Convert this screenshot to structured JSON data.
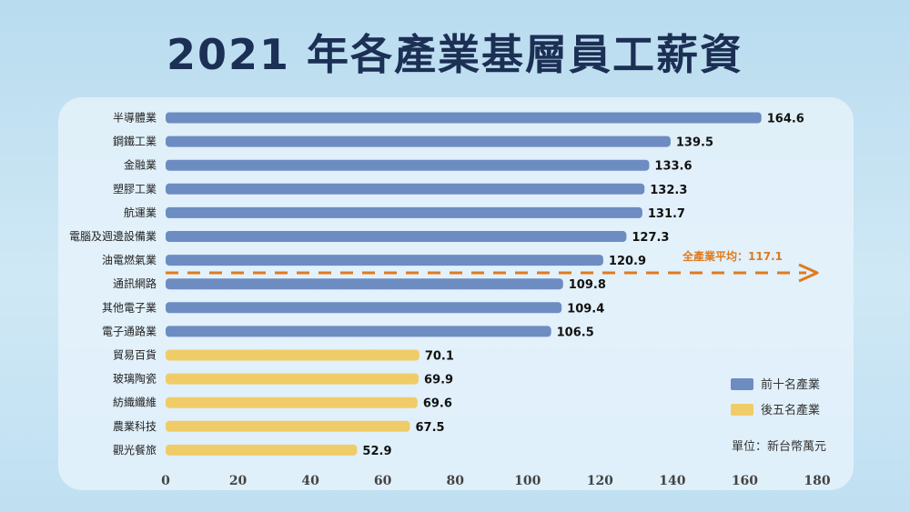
{
  "title": "2021 年各產業基層員工薪資",
  "chart_data": {
    "type": "bar",
    "orientation": "horizontal",
    "categories": [
      "半導體業",
      "鋼鐵工業",
      "金融業",
      "塑膠工業",
      "航運業",
      "電腦及週邊設備業",
      "油電燃氣業",
      "通訊網路",
      "其他電子業",
      "電子通路業",
      "貿易百貨",
      "玻璃陶瓷",
      "紡織纖維",
      "農業科技",
      "觀光餐旅"
    ],
    "values": [
      164.6,
      139.5,
      133.6,
      132.3,
      131.7,
      127.3,
      120.9,
      109.8,
      109.4,
      106.5,
      70.1,
      69.9,
      69.6,
      67.5,
      52.9
    ],
    "value_labels": [
      "164.6",
      "139.5",
      "133.6",
      "132.3",
      "131.7",
      "127.3",
      "120.9",
      "109.8",
      "109.4",
      "106.5",
      "70.1",
      "69.9",
      "69.6",
      "67.5",
      "52.9"
    ],
    "groups": [
      "top",
      "top",
      "top",
      "top",
      "top",
      "top",
      "top",
      "top",
      "top",
      "top",
      "bottom",
      "bottom",
      "bottom",
      "bottom",
      "bottom"
    ],
    "xlim": [
      0,
      180
    ],
    "xticks": [
      "0",
      "20",
      "40",
      "60",
      "80",
      "100",
      "120",
      "140",
      "160",
      "180"
    ],
    "average": {
      "value": 117.1,
      "label": "全產業平均：117.1",
      "color": "#e07a1f"
    },
    "legend": [
      {
        "key": "top",
        "label": "前十名產業",
        "color": "#6d8cc2"
      },
      {
        "key": "bottom",
        "label": "後五名產業",
        "color": "#f0cc68"
      }
    ],
    "legend_position": "bottom-right",
    "unit": "單位：新台幣萬元",
    "grid": false
  }
}
